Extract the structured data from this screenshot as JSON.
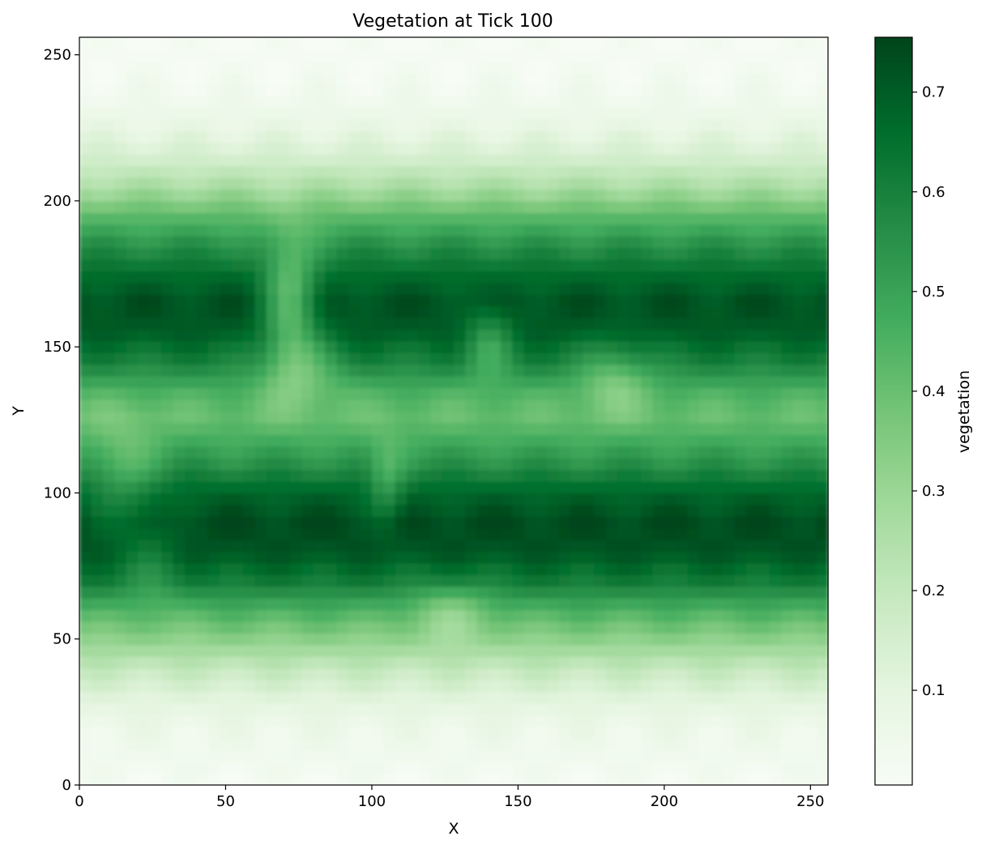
{
  "chart_data": {
    "type": "heatmap",
    "title": "Vegetation at Tick 100",
    "xlabel": "X",
    "ylabel": "Y",
    "xlim": [
      0,
      256
    ],
    "ylim": [
      0,
      256
    ],
    "x_ticks": [
      0,
      50,
      100,
      150,
      200,
      250
    ],
    "y_ticks": [
      0,
      50,
      100,
      150,
      200,
      250
    ],
    "colormap": "Greens",
    "colorbar": {
      "label": "vegetation",
      "range": [
        0.005,
        0.755
      ],
      "ticks": [
        0.1,
        0.2,
        0.3,
        0.4,
        0.5,
        0.6,
        0.7
      ]
    },
    "value_by_y": {
      "y": [
        0,
        10,
        20,
        30,
        40,
        50,
        60,
        70,
        80,
        90,
        100,
        110,
        120,
        127,
        135,
        145,
        155,
        165,
        175,
        185,
        195,
        205,
        215,
        225,
        235,
        245,
        256
      ],
      "v": [
        0.02,
        0.04,
        0.06,
        0.11,
        0.2,
        0.33,
        0.46,
        0.62,
        0.72,
        0.74,
        0.68,
        0.55,
        0.45,
        0.4,
        0.46,
        0.6,
        0.7,
        0.73,
        0.66,
        0.55,
        0.42,
        0.26,
        0.15,
        0.08,
        0.04,
        0.02,
        0.01
      ]
    },
    "features": [
      {
        "x": 72,
        "y": 165,
        "depth": 0.28,
        "rx": 9,
        "ry": 22,
        "note": "gap"
      },
      {
        "x": 76,
        "y": 143,
        "depth": 0.12,
        "rx": 14,
        "ry": 12,
        "note": "gap"
      },
      {
        "x": 140,
        "y": 152,
        "depth": 0.16,
        "rx": 8,
        "ry": 12,
        "note": "gap"
      },
      {
        "x": 183,
        "y": 140,
        "depth": 0.14,
        "rx": 12,
        "ry": 12,
        "note": "gap"
      },
      {
        "x": 105,
        "y": 103,
        "depth": 0.14,
        "rx": 6,
        "ry": 14,
        "note": "gap"
      },
      {
        "x": 127,
        "y": 60,
        "depth": 0.12,
        "rx": 14,
        "ry": 10,
        "note": "gap"
      },
      {
        "x": 15,
        "y": 105,
        "depth": 0.12,
        "rx": 12,
        "ry": 20,
        "note": "gap"
      },
      {
        "x": 25,
        "y": 75,
        "depth": 0.08,
        "rx": 10,
        "ry": 15,
        "note": "gap"
      }
    ]
  }
}
